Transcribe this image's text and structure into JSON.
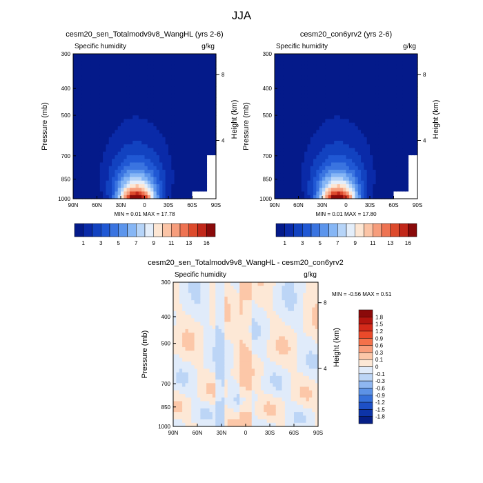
{
  "figure_title": "JJA",
  "chart_data": [
    {
      "type": "heatmap",
      "title": "cesm20_sen_Totalmodv9v8_WangHL (yrs 2-6)",
      "subtitle_left": "Specific humidity",
      "subtitle_right": "g/kg",
      "ylabel": "Pressure (mb)",
      "ylabel_right": "Height (km)",
      "x_ticks": [
        "90N",
        "60N",
        "30N",
        "0",
        "30S",
        "60S",
        "90S"
      ],
      "y_ticks": [
        "300",
        "400",
        "500",
        "700",
        "850",
        "1000"
      ],
      "y_ticks_right": [
        "8",
        "4"
      ],
      "y_scale": "log",
      "ylim": [
        1000,
        300
      ],
      "stats": {
        "min_label": "MIN =",
        "min": "0.01",
        "max_label": "MAX =",
        "max": "17.78"
      },
      "colorbar": {
        "orientation": "horizontal",
        "levels": [
          1,
          2,
          3,
          4,
          5,
          6,
          7,
          8,
          9,
          10,
          11,
          12,
          13,
          14,
          15,
          16
        ],
        "labels": [
          "1",
          "3",
          "5",
          "7",
          "9",
          "11",
          "13",
          "16"
        ],
        "colors": [
          "#041a8a",
          "#0a2aa8",
          "#1242c0",
          "#2058d4",
          "#3a74e0",
          "#5c95ec",
          "#86b6f5",
          "#b6d4f8",
          "#e4eefa",
          "#fde6d3",
          "#fbc4a6",
          "#f69d7c",
          "#ee7352",
          "#dd4a2c",
          "#c2281a",
          "#8a0a0a"
        ]
      },
      "field": "moist peak near surface at 10N decreasing upward and poleward"
    },
    {
      "type": "heatmap",
      "title": "cesm20_con6yrv2 (yrs 2-6)",
      "subtitle_left": "Specific humidity",
      "subtitle_right": "g/kg",
      "ylabel": "Pressure (mb)",
      "ylabel_right": "Height (km)",
      "x_ticks": [
        "90N",
        "60N",
        "30N",
        "0",
        "30S",
        "60S",
        "90S"
      ],
      "y_ticks": [
        "300",
        "400",
        "500",
        "700",
        "850",
        "1000"
      ],
      "y_ticks_right": [
        "8",
        "4"
      ],
      "y_scale": "log",
      "ylim": [
        1000,
        300
      ],
      "stats": {
        "min_label": "MIN =",
        "min": "0.01",
        "max_label": "MAX =",
        "max": "17.80"
      },
      "colorbar": {
        "orientation": "horizontal",
        "levels": [
          1,
          2,
          3,
          4,
          5,
          6,
          7,
          8,
          9,
          10,
          11,
          12,
          13,
          14,
          15,
          16
        ],
        "labels": [
          "1",
          "3",
          "5",
          "7",
          "9",
          "11",
          "13",
          "16"
        ],
        "colors": [
          "#041a8a",
          "#0a2aa8",
          "#1242c0",
          "#2058d4",
          "#3a74e0",
          "#5c95ec",
          "#86b6f5",
          "#b6d4f8",
          "#e4eefa",
          "#fde6d3",
          "#fbc4a6",
          "#f69d7c",
          "#ee7352",
          "#dd4a2c",
          "#c2281a",
          "#8a0a0a"
        ]
      }
    },
    {
      "type": "heatmap",
      "title": "cesm20_sen_Totalmodv9v8_WangHL - cesm20_con6yrv2",
      "subtitle_left": "Specific humidity",
      "subtitle_right": "g/kg",
      "ylabel": "Pressure (mb)",
      "ylabel_right": "Height (km)",
      "x_ticks": [
        "90N",
        "60N",
        "30N",
        "0",
        "30S",
        "60S",
        "90S"
      ],
      "y_ticks": [
        "300",
        "400",
        "500",
        "700",
        "850",
        "1000"
      ],
      "y_ticks_right": [
        "8",
        "4"
      ],
      "y_scale": "log",
      "ylim": [
        1000,
        300
      ],
      "stats": {
        "min_label": "MIN =",
        "min": "-0.56",
        "max_label": "MAX =",
        "max": "0.51"
      },
      "colorbar": {
        "orientation": "vertical",
        "labels": [
          "1.8",
          "1.5",
          "1.2",
          "0.9",
          "0.6",
          "0.3",
          "0.1",
          "0",
          "-0.1",
          "-0.3",
          "-0.6",
          "-0.9",
          "-1.2",
          "-1.5",
          "-1.8"
        ],
        "colors": [
          "#8b0a0a",
          "#b3150f",
          "#d42a1a",
          "#ea4a2a",
          "#f4714a",
          "#f99d7a",
          "#fcc7a8",
          "#fde8d6",
          "#e0ebfa",
          "#bcd5f6",
          "#8fb6f0",
          "#5d92e6",
          "#3670da",
          "#1e50c6",
          "#0d34a8",
          "#061f86"
        ]
      }
    }
  ]
}
